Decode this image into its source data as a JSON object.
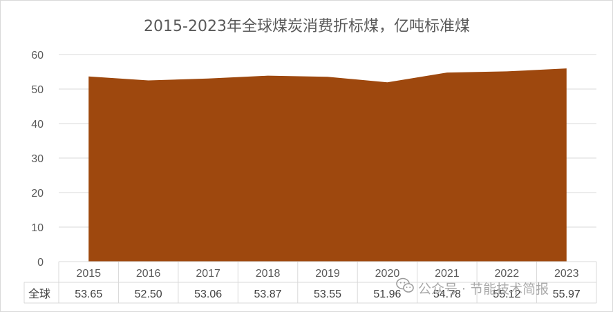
{
  "chart_data": {
    "type": "area",
    "title": "2015-2023年全球煤炭消费折标煤，亿吨标准煤",
    "categories": [
      "2015",
      "2016",
      "2017",
      "2018",
      "2019",
      "2020",
      "2021",
      "2022",
      "2023"
    ],
    "series": [
      {
        "name": "全球",
        "values": [
          53.65,
          52.5,
          53.06,
          53.87,
          53.55,
          51.96,
          54.78,
          55.12,
          55.97
        ],
        "value_labels": [
          "53.65",
          "52.50",
          "53.06",
          "53.87",
          "53.55",
          "51.96",
          "54.78",
          "55.12",
          "55.97"
        ],
        "color": "#9E480E"
      }
    ],
    "ylim": [
      0,
      60
    ],
    "yticks": [
      "0",
      "10",
      "20",
      "30",
      "40",
      "50",
      "60"
    ],
    "grid": true,
    "data_table": true
  },
  "watermark": {
    "text": "公众号 · 节能技术简报",
    "icon": "wechat-icon"
  }
}
